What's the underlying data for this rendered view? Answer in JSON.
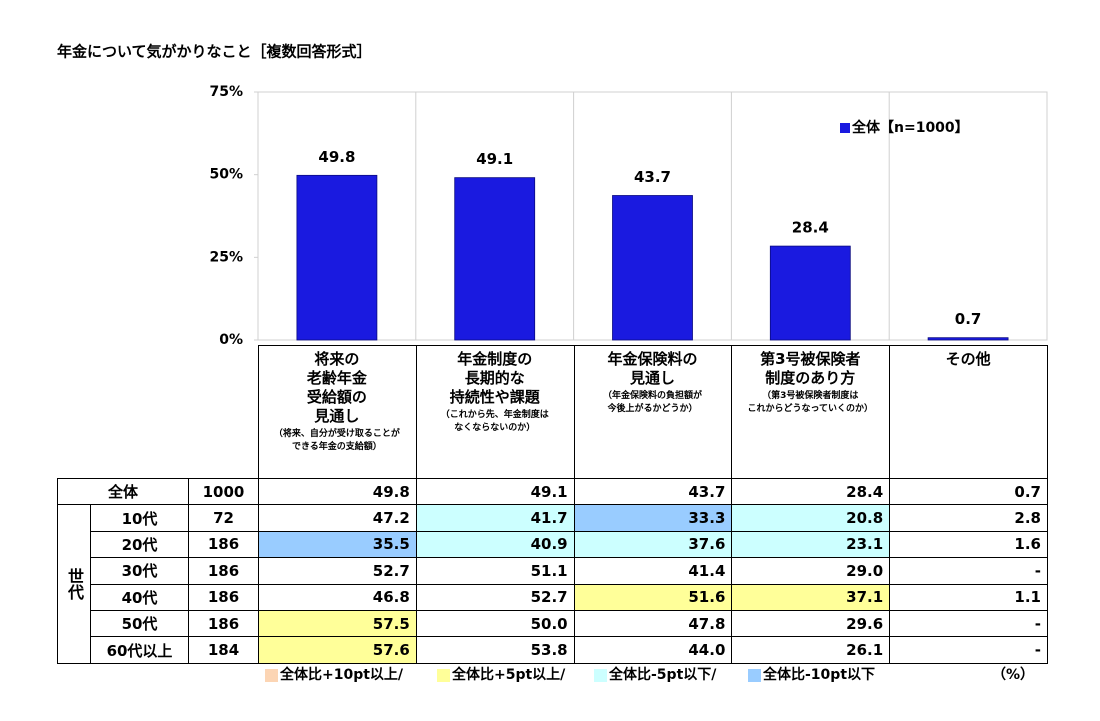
{
  "chart_data": {
    "type": "bar",
    "title": "年金について気がかりなこと［複数回答形式］",
    "categories": [
      "将来の\n老齢年金\n受給額の\n見通し",
      "年金制度の\n長期的な\n持続性や課題",
      "年金保険料の\n見通し",
      "第3号被保険者\n制度のあり方",
      "その他"
    ],
    "category_notes": [
      "（将来、自分が受け取ることが\nできる年金の支給額）",
      "（これから先、年金制度は\nなくならないのか）",
      "（年金保険料の負担額が\n今後上がるかどうか）",
      "（第3号被保険者制度は\nこれからどうなっていくのか）",
      null
    ],
    "series": [
      {
        "name": "全体【n=1000】",
        "color": "#1a1ae0",
        "values": [
          49.8,
          49.1,
          43.7,
          28.4,
          0.7
        ]
      }
    ],
    "ylim": [
      0,
      75
    ],
    "yticks": [
      {
        "value": 0,
        "label": "0%"
      },
      {
        "value": 25,
        "label": "25%"
      },
      {
        "value": 50,
        "label": "50%"
      },
      {
        "value": 75,
        "label": "75%"
      }
    ],
    "legend": "top-right"
  },
  "table": {
    "group_label": "世代",
    "rows": [
      {
        "label": "全体",
        "n": 1000,
        "values": [
          "49.8",
          "49.1",
          "43.7",
          "28.4",
          "0.7"
        ],
        "highlights": [
          null,
          null,
          null,
          null,
          null
        ]
      },
      {
        "label": "10代",
        "n": 72,
        "values": [
          "47.2",
          "41.7",
          "33.3",
          "20.8",
          "2.8"
        ],
        "highlights": [
          null,
          2,
          3,
          2,
          null
        ]
      },
      {
        "label": "20代",
        "n": 186,
        "values": [
          "35.5",
          "40.9",
          "37.6",
          "23.1",
          "1.6"
        ],
        "highlights": [
          3,
          2,
          2,
          2,
          null
        ]
      },
      {
        "label": "30代",
        "n": 186,
        "values": [
          "52.7",
          "51.1",
          "41.4",
          "29.0",
          "-"
        ],
        "highlights": [
          null,
          null,
          null,
          null,
          null
        ]
      },
      {
        "label": "40代",
        "n": 186,
        "values": [
          "46.8",
          "52.7",
          "51.6",
          "37.1",
          "1.1"
        ],
        "highlights": [
          null,
          null,
          1,
          1,
          null
        ]
      },
      {
        "label": "50代",
        "n": 186,
        "values": [
          "57.5",
          "50.0",
          "47.8",
          "29.6",
          "-"
        ],
        "highlights": [
          1,
          null,
          null,
          null,
          null
        ]
      },
      {
        "label": "60代以上",
        "n": 184,
        "values": [
          "57.6",
          "53.8",
          "44.0",
          "26.1",
          "-"
        ],
        "highlights": [
          1,
          null,
          null,
          null,
          null
        ]
      }
    ],
    "legend": [
      {
        "label": "全体比+10pt以上/",
        "color": "#fcd5b4"
      },
      {
        "label": "全体比+5pt以上/",
        "color": "#ffff99"
      },
      {
        "label": "全体比-5pt以下/",
        "color": "#ccffff"
      },
      {
        "label": "全体比-10pt以下",
        "color": "#99ccff"
      }
    ],
    "unit": "（%）"
  }
}
